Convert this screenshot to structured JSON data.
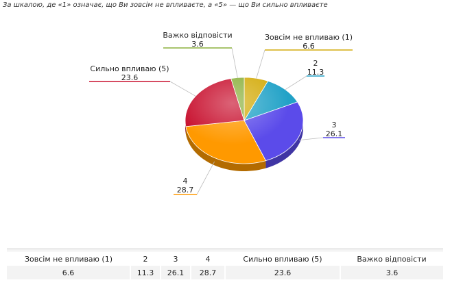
{
  "caption": "За шкалою, де «1»  означає, що Ви зовсім не впливаєте, а «5» — що Ви сильно впливаєте",
  "chart_data": {
    "type": "pie",
    "title": "",
    "slices": [
      {
        "name": "Зовсім не впливаю (1)",
        "value": 6.6,
        "color": "#d4ac0d",
        "label": [
          "Зовсім не впливаю (1)",
          "6.6"
        ]
      },
      {
        "name": "2",
        "value": 11.3,
        "color": "#22a2c7",
        "label": [
          "2",
          "11.3"
        ]
      },
      {
        "name": "3",
        "value": 26.1,
        "color": "#5b4bea",
        "label": [
          "3",
          "26.1"
        ]
      },
      {
        "name": "4",
        "value": 28.7,
        "color": "#ff9900",
        "label": [
          "4",
          "28.7"
        ]
      },
      {
        "name": "Сильно впливаю (5)",
        "value": 23.6,
        "color": "#c8102e",
        "label": [
          "Сильно впливаю (5)",
          "23.6"
        ]
      },
      {
        "name": "Важко відповісти",
        "value": 3.6,
        "color": "#8bb03d",
        "label": [
          "Важко відповісти",
          "3.6"
        ]
      }
    ]
  },
  "table": {
    "headers": [
      "Зовсім не впливаю (1)",
      "2",
      "3",
      "4",
      "Сильно впливаю (5)",
      "Важко відповісти"
    ],
    "values": [
      "6.6",
      "11.3",
      "26.1",
      "28.7",
      "23.6",
      "3.6"
    ]
  }
}
